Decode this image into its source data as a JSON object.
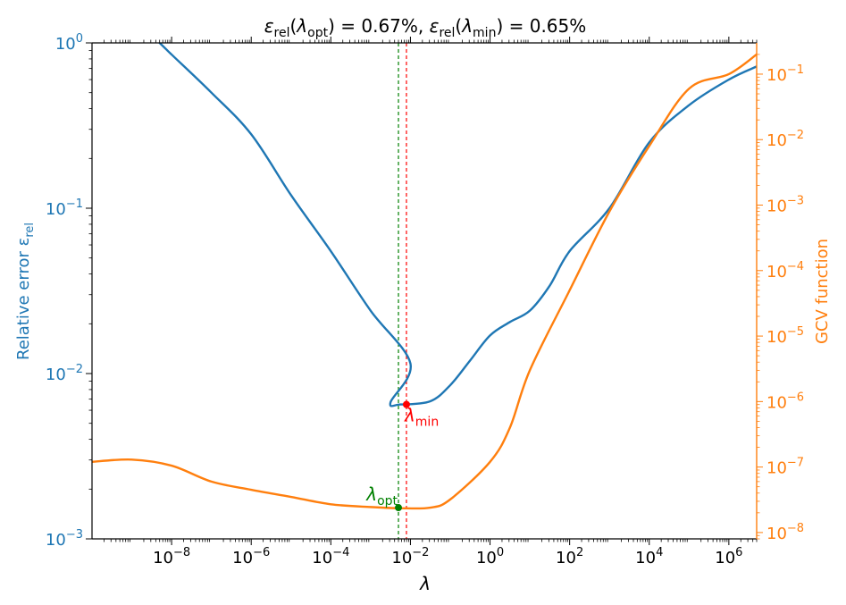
{
  "chart_data": {
    "type": "line",
    "title": "ε_rel(λ_opt) = 0.67%, ε_rel(λ_min) = 0.65%",
    "title_parts": {
      "eps": "ε",
      "rel": "rel",
      "lam": "λ",
      "opt": "opt",
      "min": "min",
      "eq1": ") = 0.67%, ",
      "eq2": ") = 0.65%"
    },
    "xlabel": "λ",
    "ylabel_left": "Relative error ε",
    "ylabel_left_sub": "rel",
    "ylabel_right": "GCV function",
    "x_scale": "log",
    "y_scale_left": "log",
    "y_scale_right": "log",
    "xlim": [
      1e-10,
      5000000.0
    ],
    "ylim_left": [
      0.001,
      1
    ],
    "ylim_right": [
      8e-09,
      0.3
    ],
    "x_ticks": [
      {
        "value": 1e-08,
        "base": "10",
        "exp": "−8"
      },
      {
        "value": 1e-06,
        "base": "10",
        "exp": "−6"
      },
      {
        "value": 0.0001,
        "base": "10",
        "exp": "−4"
      },
      {
        "value": 0.01,
        "base": "10",
        "exp": "−2"
      },
      {
        "value": 1.0,
        "base": "10",
        "exp": "0"
      },
      {
        "value": 100.0,
        "base": "10",
        "exp": "2"
      },
      {
        "value": 10000.0,
        "base": "10",
        "exp": "4"
      },
      {
        "value": 1000000.0,
        "base": "10",
        "exp": "6"
      }
    ],
    "y_ticks_left": [
      {
        "value": 0.001,
        "base": "10",
        "exp": "−3"
      },
      {
        "value": 0.01,
        "base": "10",
        "exp": "−2"
      },
      {
        "value": 0.1,
        "base": "10",
        "exp": "−1"
      },
      {
        "value": 1.0,
        "base": "10",
        "exp": "0"
      }
    ],
    "y_ticks_right": [
      {
        "value": 1e-08,
        "base": "10",
        "exp": "−8"
      },
      {
        "value": 1e-07,
        "base": "10",
        "exp": "−7"
      },
      {
        "value": 1e-06,
        "base": "10",
        "exp": "−6"
      },
      {
        "value": 1e-05,
        "base": "10",
        "exp": "−5"
      },
      {
        "value": 0.0001,
        "base": "10",
        "exp": "−4"
      },
      {
        "value": 0.001,
        "base": "10",
        "exp": "−3"
      },
      {
        "value": 0.01,
        "base": "10",
        "exp": "−2"
      },
      {
        "value": 0.1,
        "base": "10",
        "exp": "−1"
      }
    ],
    "series": [
      {
        "color": "#1f77b4",
        "axis": "left",
        "points": [
          [
            1e-10,
            2.5
          ],
          [
            5e-09,
            1.0
          ],
          [
            1e-08,
            0.85
          ],
          [
            1e-07,
            0.5
          ],
          [
            1e-06,
            0.28
          ],
          [
            1e-05,
            0.12
          ],
          [
            0.0001,
            0.055
          ],
          [
            0.001,
            0.024
          ],
          [
            0.01,
            0.0115
          ],
          [
            0.00316,
            0.0067
          ],
          [
            0.00562,
            0.0065
          ],
          [
            0.0316,
            0.0068
          ],
          [
            0.1,
            0.0085
          ],
          [
            0.316,
            0.012
          ],
          [
            1,
            0.017
          ],
          [
            3.16,
            0.0205
          ],
          [
            10,
            0.024
          ],
          [
            31.6,
            0.034
          ],
          [
            100,
            0.055
          ],
          [
            1000,
            0.1
          ],
          [
            10000,
            0.25
          ],
          [
            100000.0,
            0.42
          ],
          [
            1000000.0,
            0.6
          ],
          [
            5000000.0,
            0.72
          ]
        ]
      },
      {
        "color": "#ff7f0e",
        "axis": "right",
        "points": [
          [
            1e-10,
            1.2e-07
          ],
          [
            1e-09,
            1.3e-07
          ],
          [
            1e-08,
            1.05e-07
          ],
          [
            1e-07,
            6e-08
          ],
          [
            1e-06,
            4.5e-08
          ],
          [
            1e-05,
            3.5e-08
          ],
          [
            0.0001,
            2.7e-08
          ],
          [
            0.001,
            2.45e-08
          ],
          [
            0.00562,
            2.35e-08
          ],
          [
            0.0316,
            2.4e-08
          ],
          [
            0.1,
            3.2e-08
          ],
          [
            1,
            1.2e-07
          ],
          [
            3.16,
            4e-07
          ],
          [
            10,
            3e-06
          ],
          [
            100,
            5e-05
          ],
          [
            1000,
            0.0008
          ],
          [
            10000,
            0.008
          ],
          [
            100000.0,
            0.06
          ],
          [
            1000000.0,
            0.1
          ],
          [
            5000000.0,
            0.2
          ]
        ]
      }
    ],
    "vlines": [
      {
        "x": 0.005,
        "color": "#008000",
        "style": "dashed"
      },
      {
        "x": 0.00794,
        "color": "#ff0000",
        "style": "dashed"
      }
    ],
    "markers": [
      {
        "x": 0.00794,
        "y": 0.0065,
        "axis": "left",
        "color": "#ff0000",
        "label": "λ",
        "label_sub": "min"
      },
      {
        "x": 0.005,
        "y": 2.4e-08,
        "axis": "right",
        "color": "#008000",
        "label": "λ",
        "label_sub": "opt"
      }
    ],
    "colors": {
      "left_axis": "#1f77b4",
      "right_axis": "#ff7f0e",
      "axes": "#000000"
    }
  }
}
